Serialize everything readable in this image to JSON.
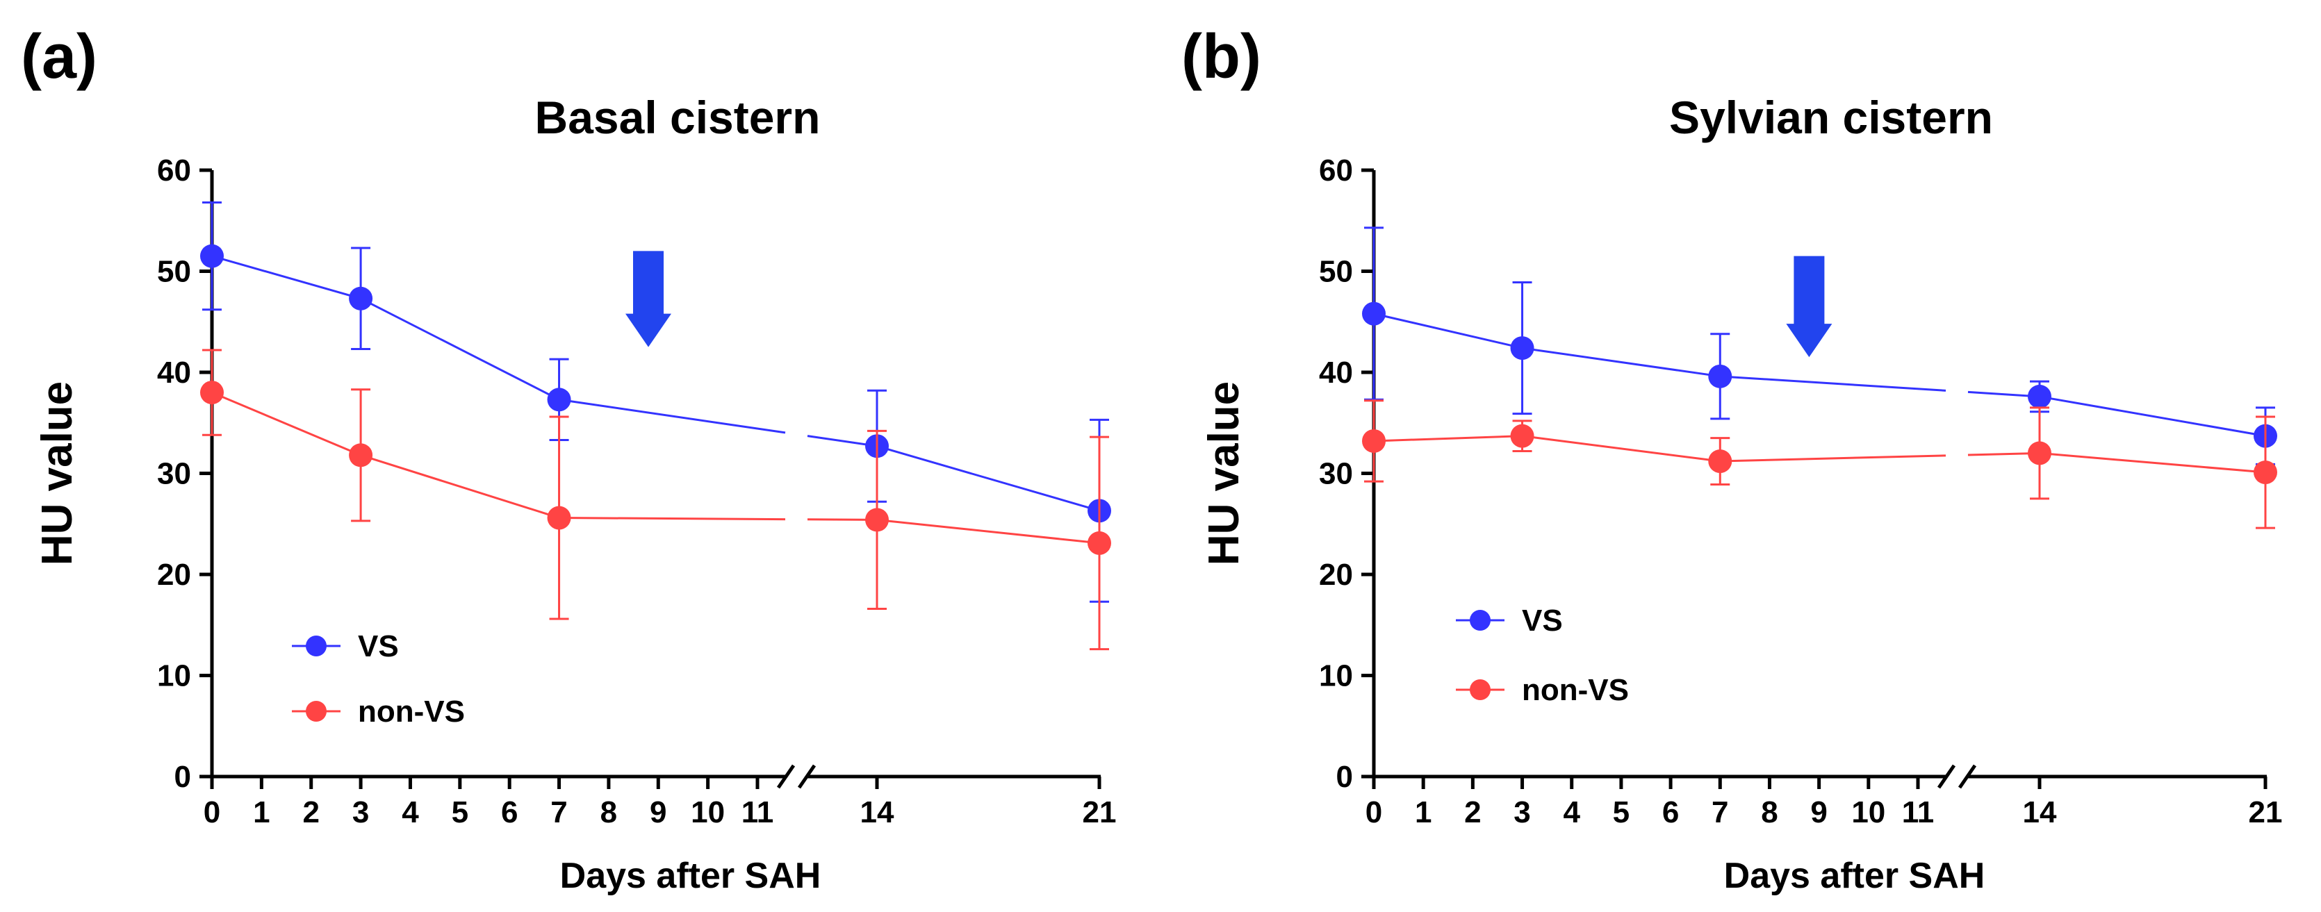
{
  "colors": {
    "vs": "#3333ff",
    "non_vs": "#ff4444",
    "arrow": "#2244ee",
    "axis": "#000000"
  },
  "chart_data": [
    {
      "panel_label": "(a)",
      "type": "line",
      "title": "Basal cistern",
      "xlabel": "Days after SAH",
      "ylabel": "HU value",
      "ylim": [
        0,
        60
      ],
      "yticks": [
        "0",
        "10",
        "20",
        "30",
        "40",
        "50",
        "60"
      ],
      "xticks": [
        "0",
        "1",
        "2",
        "3",
        "4",
        "5",
        "6",
        "7",
        "8",
        "9",
        "10",
        "11",
        "14",
        "21"
      ],
      "x_axis_break": "between 11 and 14",
      "arrow_at_day": 8.8,
      "legend": [
        "VS",
        "non-VS"
      ],
      "series": [
        {
          "name": "VS",
          "x": [
            0,
            3,
            7,
            14,
            21
          ],
          "values": [
            51.5,
            47.3,
            37.3,
            32.7,
            26.3
          ],
          "error": [
            5.3,
            5.0,
            4.0,
            5.5,
            9.0
          ]
        },
        {
          "name": "non-VS",
          "x": [
            0,
            3,
            7,
            14,
            21
          ],
          "values": [
            38.0,
            31.8,
            25.6,
            25.4,
            23.1
          ],
          "error": [
            4.2,
            6.5,
            10.0,
            8.8,
            10.5
          ]
        }
      ]
    },
    {
      "panel_label": "(b)",
      "type": "line",
      "title": "Sylvian cistern",
      "xlabel": "Days after SAH",
      "ylabel": "HU value",
      "ylim": [
        0,
        60
      ],
      "yticks": [
        "0",
        "10",
        "20",
        "30",
        "40",
        "50",
        "60"
      ],
      "xticks": [
        "0",
        "1",
        "2",
        "3",
        "4",
        "5",
        "6",
        "7",
        "8",
        "9",
        "10",
        "11",
        "14",
        "21"
      ],
      "x_axis_break": "between 11 and 14",
      "arrow_at_day": 8.8,
      "legend": [
        "VS",
        "non-VS"
      ],
      "series": [
        {
          "name": "VS",
          "x": [
            0,
            3,
            7,
            14,
            21
          ],
          "values": [
            45.8,
            42.4,
            39.6,
            37.6,
            33.7
          ],
          "error": [
            8.5,
            6.5,
            4.2,
            1.5,
            2.8
          ]
        },
        {
          "name": "non-VS",
          "x": [
            0,
            3,
            7,
            14,
            21
          ],
          "values": [
            33.2,
            33.7,
            31.2,
            32.0,
            30.1
          ],
          "error": [
            4.0,
            1.5,
            2.3,
            4.5,
            5.5
          ]
        }
      ]
    }
  ]
}
